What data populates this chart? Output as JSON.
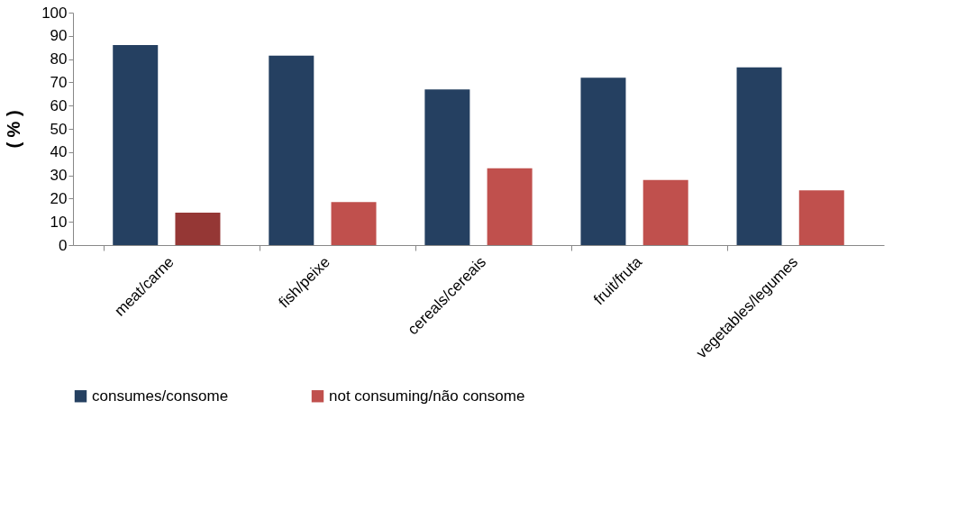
{
  "chart_data": {
    "type": "bar",
    "ylabel": "( % )",
    "categories": [
      "meat/carne",
      "fish/peixe",
      "cereals/cereais",
      "fruit/fruta",
      "vegetables/legumes"
    ],
    "series": [
      {
        "name": "consumes/consome",
        "color": "#254061",
        "values": [
          86,
          81.5,
          67,
          72,
          76.5
        ]
      },
      {
        "name": "not consuming/não consome",
        "color": "#c0504d",
        "colors": [
          "#953735",
          "#c0504d",
          "#c0504d",
          "#c0504d",
          "#c0504d"
        ],
        "values": [
          14,
          18.5,
          33,
          28,
          23.5
        ]
      }
    ],
    "ylim": [
      0,
      100
    ],
    "yticks": [
      0,
      10,
      20,
      30,
      40,
      50,
      60,
      70,
      80,
      90,
      100
    ],
    "grid": false,
    "legend": "bottom"
  }
}
